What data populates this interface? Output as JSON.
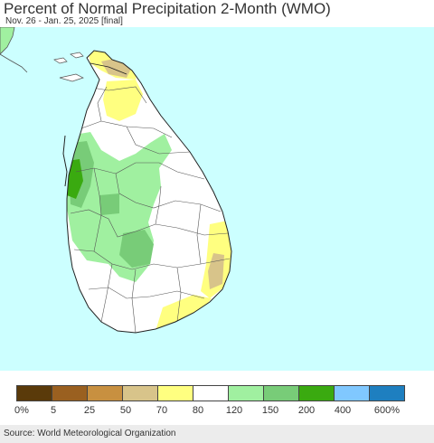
{
  "header": {
    "title": "Percent of Normal Precipitation 2-Month (WMO)",
    "subtitle": "Nov. 26 - Jan. 25, 2025 [final]"
  },
  "map": {
    "ocean_color": "#ccffff",
    "land_base_color": "#ffffff",
    "border_color": "#555555"
  },
  "legend": {
    "colors": [
      "#5a3a0a",
      "#9a6020",
      "#c89040",
      "#d8c48a",
      "#ffff80",
      "#ffffff",
      "#a0f0a0",
      "#78cc78",
      "#3aaa10",
      "#80c8ff",
      "#1e7fc0"
    ],
    "labels": [
      "0%",
      "5",
      "25",
      "50",
      "70",
      "80",
      "120",
      "150",
      "200",
      "400",
      "600%"
    ]
  },
  "footer": {
    "source": "Source: World Meteorological Organization"
  }
}
